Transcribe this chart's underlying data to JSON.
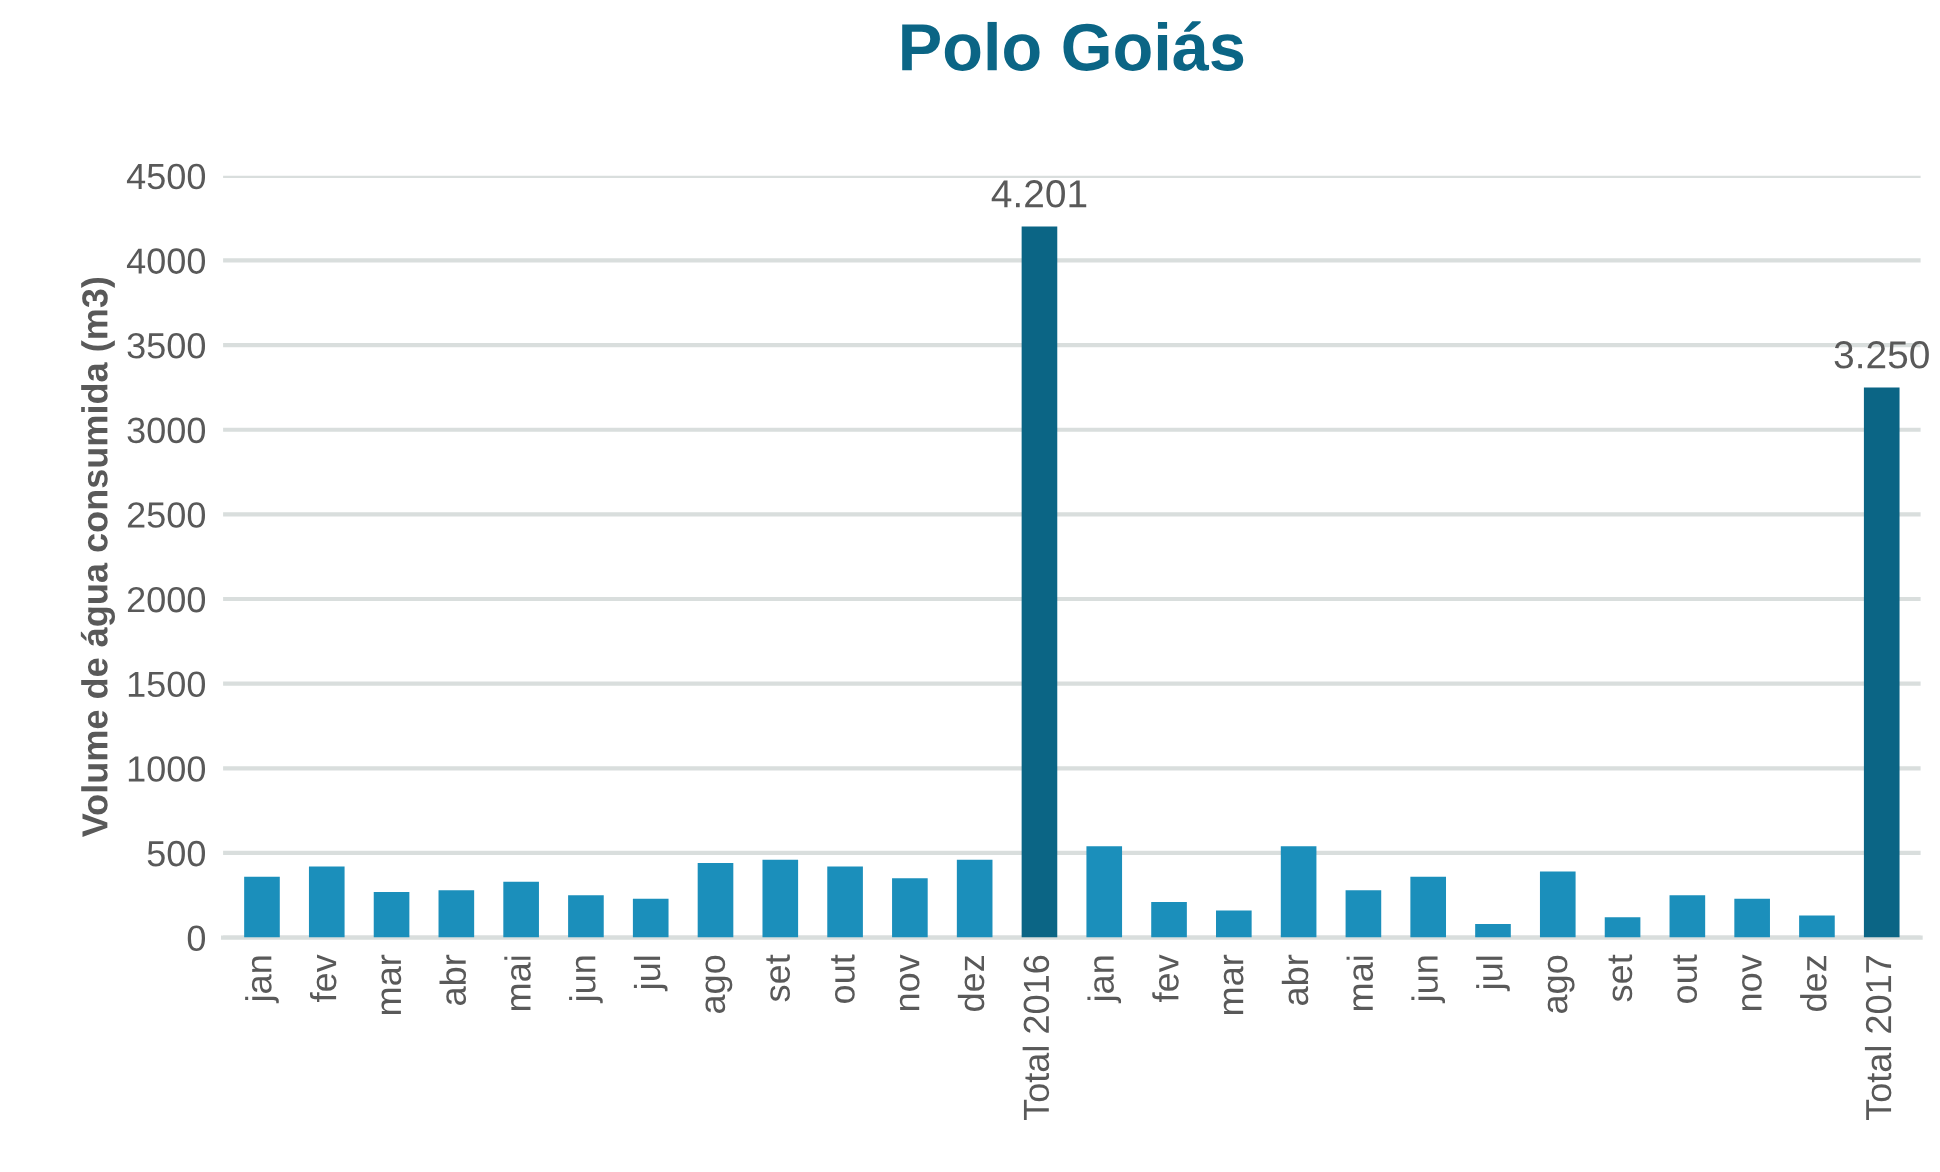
{
  "chart_data": {
    "type": "bar",
    "title": "Polo Goiás",
    "ylabel": "Volume de água consumida (m3)",
    "categories": [
      "jan",
      "fev",
      "mar",
      "abr",
      "mai",
      "jun",
      "jul",
      "ago",
      "set",
      "out",
      "nov",
      "dez",
      "Total 2016",
      "jan",
      "fev",
      "mar",
      "abr",
      "mai",
      "jun",
      "jul",
      "ago",
      "set",
      "out",
      "nov",
      "dez",
      "Total 2017"
    ],
    "values": [
      360,
      420,
      270,
      280,
      330,
      250,
      230,
      440,
      460,
      420,
      350,
      460,
      4201,
      540,
      210,
      160,
      540,
      280,
      360,
      80,
      390,
      120,
      250,
      230,
      130,
      3250
    ],
    "colors": [
      "#1b8fbb",
      "#1b8fbb",
      "#1b8fbb",
      "#1b8fbb",
      "#1b8fbb",
      "#1b8fbb",
      "#1b8fbb",
      "#1b8fbb",
      "#1b8fbb",
      "#1b8fbb",
      "#1b8fbb",
      "#1b8fbb",
      "#0b6585",
      "#1b8fbb",
      "#1b8fbb",
      "#1b8fbb",
      "#1b8fbb",
      "#1b8fbb",
      "#1b8fbb",
      "#1b8fbb",
      "#1b8fbb",
      "#1b8fbb",
      "#1b8fbb",
      "#1b8fbb",
      "#1b8fbb",
      "#0b6585"
    ],
    "value_labels": [
      null,
      null,
      null,
      null,
      null,
      null,
      null,
      null,
      null,
      null,
      null,
      null,
      "4.201",
      null,
      null,
      null,
      null,
      null,
      null,
      null,
      null,
      null,
      null,
      null,
      null,
      "3.250"
    ],
    "ylim": [
      0,
      4500
    ],
    "yticks": [
      0,
      500,
      1000,
      1500,
      2000,
      2500,
      3000,
      3500,
      4000,
      4500
    ],
    "grid": "y",
    "legend": false
  }
}
